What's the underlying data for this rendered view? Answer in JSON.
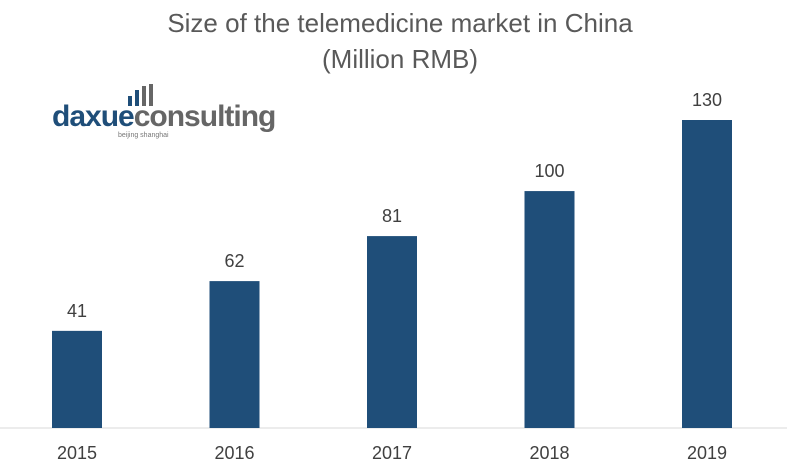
{
  "logo": {
    "text_primary": "daxue",
    "text_secondary": "consulting",
    "tagline": "beijing shanghai"
  },
  "chart_data": {
    "type": "bar",
    "title": "Size of the telemedicine market in China",
    "subtitle": "(Million RMB)",
    "categories": [
      "2015",
      "2016",
      "2017",
      "2018",
      "2019"
    ],
    "values": [
      41,
      62,
      81,
      100,
      130
    ],
    "data_labels": [
      "41",
      "62",
      "81",
      "100",
      "130"
    ],
    "xlabel": "",
    "ylabel": "",
    "ylim": [
      0,
      130
    ],
    "grid": false,
    "legend": "none",
    "colors": {
      "bar": "#1F4E79",
      "axis": "#D9D9D9",
      "logo_blue": "#1F4E79",
      "logo_gray": "#666666"
    }
  }
}
